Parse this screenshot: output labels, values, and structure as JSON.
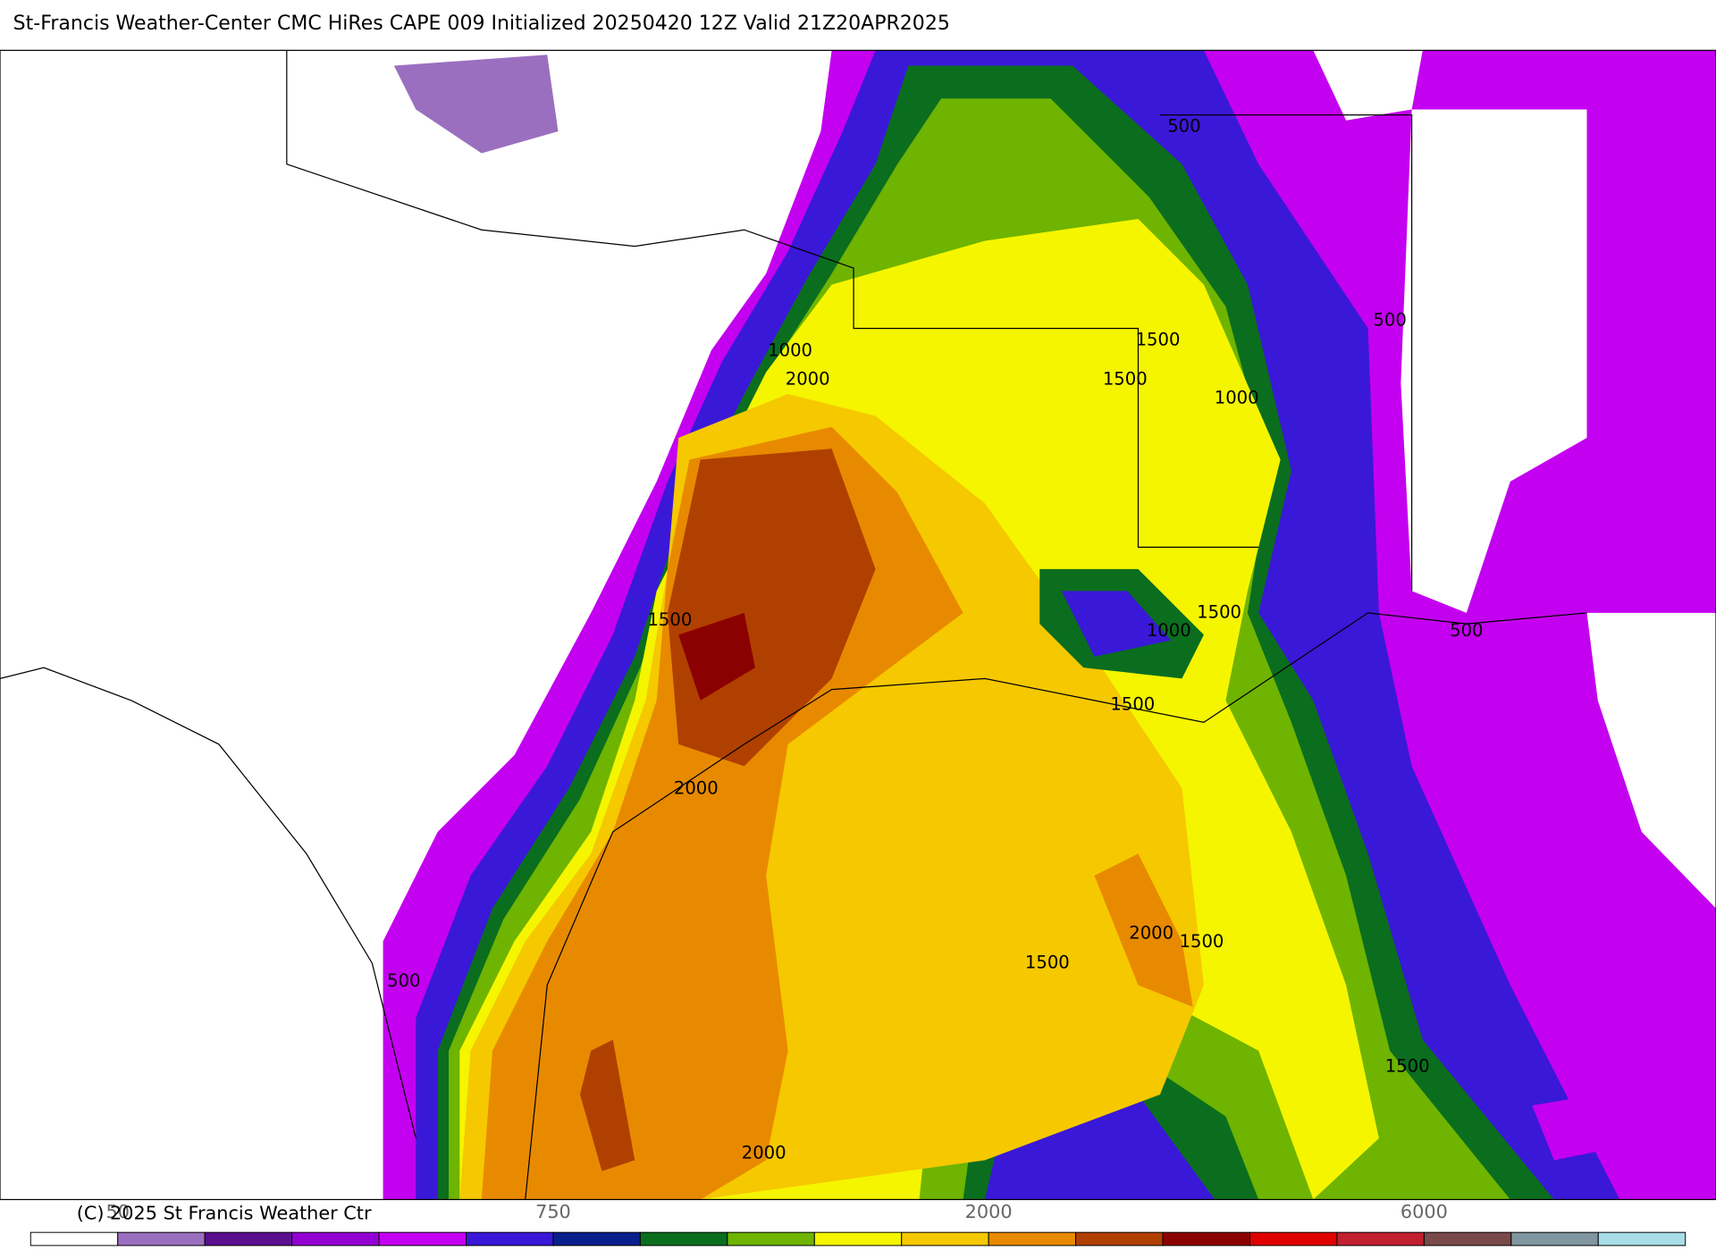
{
  "header": {
    "title": "St-Francis Weather-Center CMC HiRes CAPE  009 Initialized 20250420 12Z Valid 21Z20APR2025"
  },
  "map": {
    "contour_labels": [
      "500",
      "500",
      "1500",
      "1000",
      "2000",
      "1500",
      "1000",
      "1500",
      "1500",
      "1000",
      "500",
      "1500",
      "2000",
      "2000",
      "1500",
      "1500",
      "500",
      "1500",
      "2000"
    ]
  },
  "colorbar": {
    "labels": [
      "50",
      "750",
      "2000",
      "6000"
    ],
    "colors": [
      "#ffffff",
      "#9b6fbf",
      "#5a108f",
      "#9400d3",
      "#c400f0",
      "#3a18d8",
      "#0a1f8c",
      "#0a6e1e",
      "#6eb400",
      "#f5f500",
      "#f5c800",
      "#e88a00",
      "#b04000",
      "#8b0000",
      "#e00000",
      "#c02030",
      "#7a4a4a",
      "#8096a0",
      "#a8dce6"
    ]
  },
  "footer": {
    "copyright": "(C) 2025 St Francis Weather Ctr"
  }
}
